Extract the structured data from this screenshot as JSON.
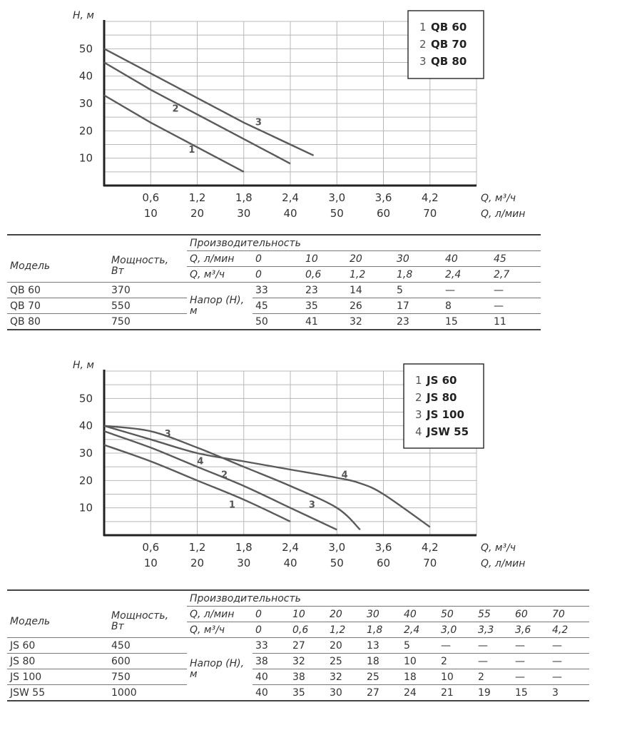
{
  "charts": {
    "chart_data": [
      {
        "type": "line",
        "title": "",
        "ylabel": "H, м",
        "xlabel": "Q, м³/ч",
        "xlabel2": "Q, л/мин",
        "ylim": [
          0,
          60
        ],
        "xlim": [
          0,
          4.8
        ],
        "y_ticks": [
          "10",
          "20",
          "30",
          "40",
          "50"
        ],
        "x_ticks": [
          "0,6",
          "1,2",
          "1,8",
          "2,4",
          "3,0",
          "3,6",
          "4,2"
        ],
        "x2_ticks": [
          "10",
          "20",
          "30",
          "40",
          "50",
          "60",
          "70"
        ],
        "grid": true,
        "legend": "top-right",
        "legend_entries": [
          {
            "num": "1",
            "name": "QB 60"
          },
          {
            "num": "2",
            "name": "QB 70"
          },
          {
            "num": "3",
            "name": "QB 80"
          }
        ],
        "series": [
          {
            "label": "1",
            "x": [
              0,
              0.6,
              1.2,
              1.8
            ],
            "y": [
              33,
              23,
              14,
              5
            ],
            "label_at": [
              1.13,
              12
            ]
          },
          {
            "label": "2",
            "x": [
              0,
              0.6,
              1.2,
              1.8,
              2.4
            ],
            "y": [
              45,
              35,
              26,
              17,
              8
            ],
            "label_at": [
              0.92,
              27
            ]
          },
          {
            "label": "3",
            "x": [
              0,
              0.6,
              1.2,
              1.8,
              2.4,
              2.7
            ],
            "y": [
              50,
              41,
              32,
              23,
              15,
              11
            ],
            "label_at": [
              1.99,
              22
            ]
          }
        ]
      },
      {
        "type": "line",
        "title": "",
        "ylabel": "H, м",
        "xlabel": "Q, м³/ч",
        "xlabel2": "Q, л/мин",
        "ylim": [
          0,
          60
        ],
        "xlim": [
          0,
          4.8
        ],
        "y_ticks": [
          "10",
          "20",
          "30",
          "40",
          "50"
        ],
        "x_ticks": [
          "0,6",
          "1,2",
          "1,8",
          "2,4",
          "3,0",
          "3,6",
          "4,2"
        ],
        "x2_ticks": [
          "10",
          "20",
          "30",
          "40",
          "50",
          "60",
          "70"
        ],
        "grid": true,
        "legend": "top-right",
        "legend_entries": [
          {
            "num": "1",
            "name": "JS 60"
          },
          {
            "num": "2",
            "name": "JS 80"
          },
          {
            "num": "3",
            "name": "JS 100"
          },
          {
            "num": "4",
            "name": "JSW 55"
          }
        ],
        "series": [
          {
            "label": "1",
            "x": [
              0,
              0.6,
              1.2,
              1.8,
              2.4
            ],
            "y": [
              33,
              27,
              20,
              13,
              5
            ],
            "label_at": [
              1.65,
              10
            ]
          },
          {
            "label": "2",
            "x": [
              0,
              0.6,
              1.2,
              1.8,
              2.4,
              3.0
            ],
            "y": [
              38,
              32,
              25,
              18,
              10,
              2
            ],
            "label_at": [
              1.55,
              21
            ]
          },
          {
            "label": "3",
            "x": [
              0,
              0.6,
              1.2,
              1.8,
              2.4,
              3.0,
              3.3
            ],
            "y": [
              40,
              38,
              32,
              25,
              18,
              10,
              2
            ],
            "label_at": [
              0.82,
              36
            ],
            "label2_at": [
              2.68,
              10
            ]
          },
          {
            "label": "4",
            "x": [
              0,
              0.6,
              1.2,
              1.8,
              2.4,
              3.0,
              3.3,
              3.6,
              4.2
            ],
            "y": [
              40,
              35,
              30,
              27,
              24,
              21,
              19,
              15,
              3
            ],
            "label_at": [
              1.24,
              26
            ],
            "label2_at": [
              3.1,
              21
            ]
          }
        ]
      }
    ]
  },
  "tables": [
    {
      "model_header": "Модель",
      "power_header": "Мощность, Вт",
      "performance_header": "Производительность",
      "q_lmin_label": "Q, л/мин",
      "q_m3h_label": "Q, м³/ч",
      "head_label": "Напор (Н), м",
      "q_lmin": [
        "0",
        "10",
        "20",
        "30",
        "40",
        "45"
      ],
      "q_m3h": [
        "0",
        "0,6",
        "1,2",
        "1,8",
        "2,4",
        "2,7"
      ],
      "rows": [
        {
          "model": "QB 60",
          "power": "370",
          "values": [
            "33",
            "23",
            "14",
            "5",
            "—",
            "—"
          ]
        },
        {
          "model": "QB 70",
          "power": "550",
          "values": [
            "45",
            "35",
            "26",
            "17",
            "8",
            "—"
          ]
        },
        {
          "model": "QB 80",
          "power": "750",
          "values": [
            "50",
            "41",
            "32",
            "23",
            "15",
            "11"
          ]
        }
      ]
    },
    {
      "model_header": "Модель",
      "power_header": "Мощность, Вт",
      "performance_header": "Производительность",
      "q_lmin_label": "Q, л/мин",
      "q_m3h_label": "Q, м³/ч",
      "head_label": "Напор (Н), м",
      "q_lmin": [
        "0",
        "10",
        "20",
        "30",
        "40",
        "50",
        "55",
        "60",
        "70"
      ],
      "q_m3h": [
        "0",
        "0,6",
        "1,2",
        "1,8",
        "2,4",
        "3,0",
        "3,3",
        "3,6",
        "4,2"
      ],
      "rows": [
        {
          "model": "JS 60",
          "power": "450",
          "values": [
            "33",
            "27",
            "20",
            "13",
            "5",
            "—",
            "—",
            "—",
            "—"
          ]
        },
        {
          "model": "JS 80",
          "power": "600",
          "values": [
            "38",
            "32",
            "25",
            "18",
            "10",
            "2",
            "—",
            "—",
            "—"
          ]
        },
        {
          "model": "JS 100",
          "power": "750",
          "values": [
            "40",
            "38",
            "32",
            "25",
            "18",
            "10",
            "2",
            "—",
            "—"
          ]
        },
        {
          "model": "JSW 55",
          "power": "1000",
          "values": [
            "40",
            "35",
            "30",
            "27",
            "24",
            "21",
            "19",
            "15",
            "3"
          ]
        }
      ]
    }
  ],
  "colors": {
    "curve": "#5a5a5a",
    "grid": "#b8b8b8",
    "axis": "#222222",
    "text": "#333333"
  }
}
